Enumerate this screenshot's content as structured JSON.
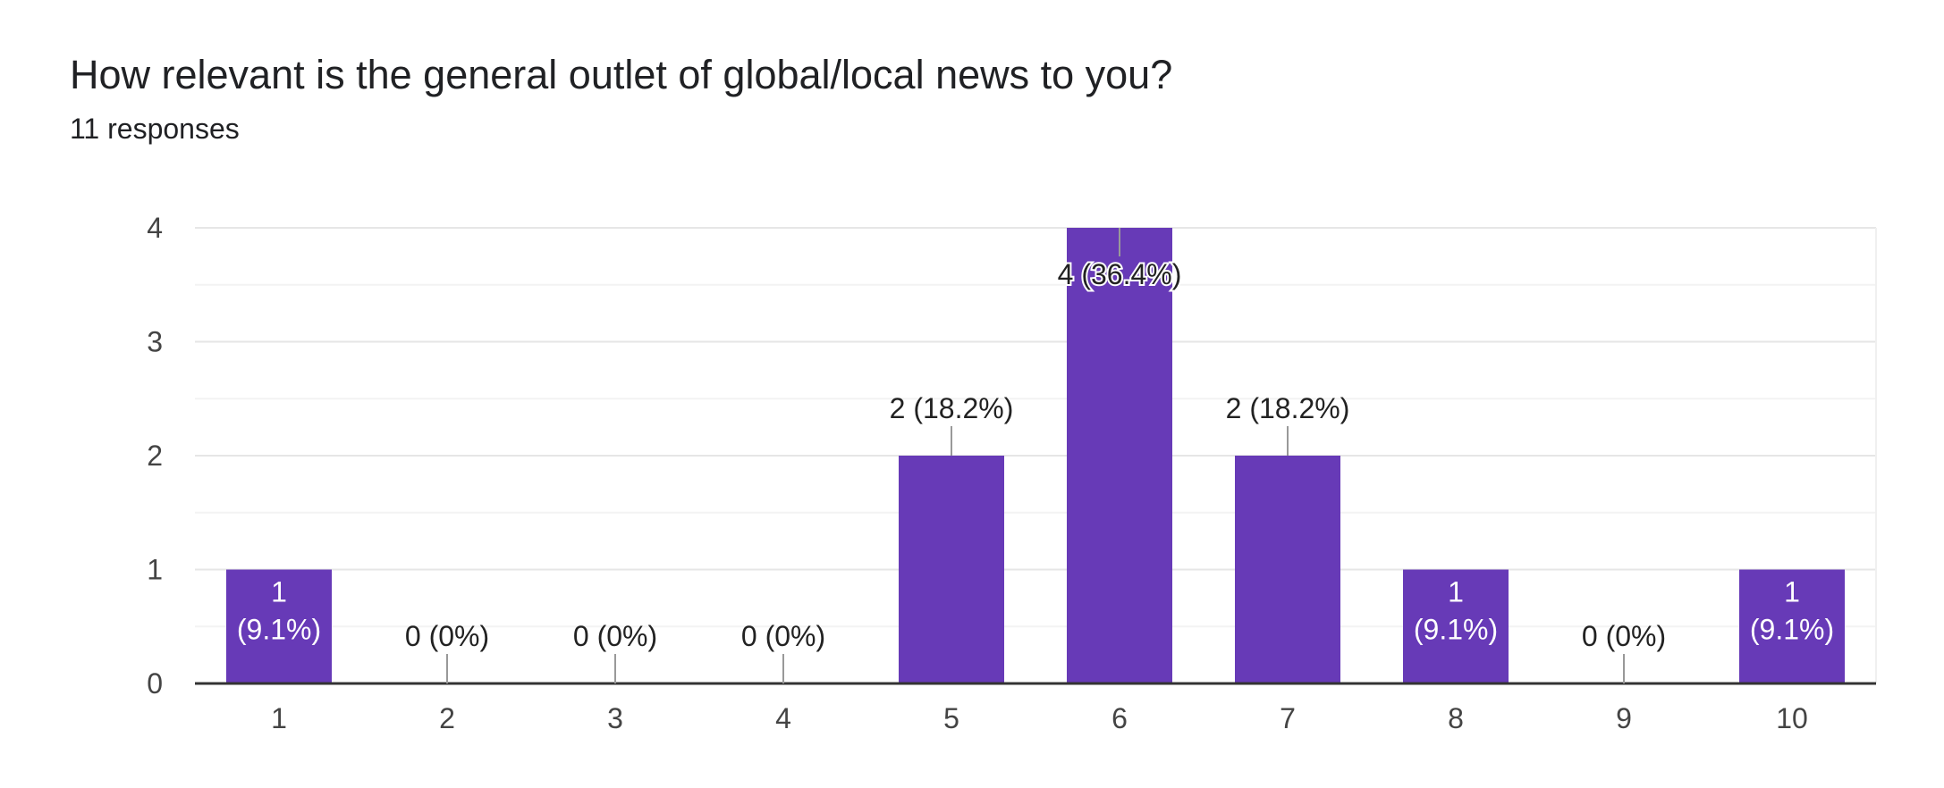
{
  "title": "How relevant is the general outlet of global/local news to you?",
  "subtitle": "11 responses",
  "chart_data": {
    "type": "bar",
    "categories": [
      "1",
      "2",
      "3",
      "4",
      "5",
      "6",
      "7",
      "8",
      "9",
      "10"
    ],
    "values": [
      1,
      0,
      0,
      0,
      2,
      4,
      2,
      1,
      0,
      1
    ],
    "value_labels": [
      "1 (9.1%)",
      "0 (0%)",
      "0 (0%)",
      "0 (0%)",
      "2 (18.2%)",
      "4 (36.4%)",
      "2 (18.2%)",
      "1 (9.1%)",
      "0 (0%)",
      "1 (9.1%)"
    ],
    "label_count": [
      "1",
      "0",
      "0",
      "0",
      "2",
      "4",
      "2",
      "1",
      "0",
      "1"
    ],
    "label_pct": [
      "(9.1%)",
      "(0%)",
      "(0%)",
      "(0%)",
      "(18.2%)",
      "(36.4%)",
      "(18.2%)",
      "(9.1%)",
      "(0%)",
      "(9.1%)"
    ],
    "yticks": [
      "0",
      "1",
      "2",
      "3",
      "4"
    ],
    "ylim": [
      0,
      4
    ],
    "grid": true,
    "legend": "none",
    "bar_color": "#673ab7"
  }
}
